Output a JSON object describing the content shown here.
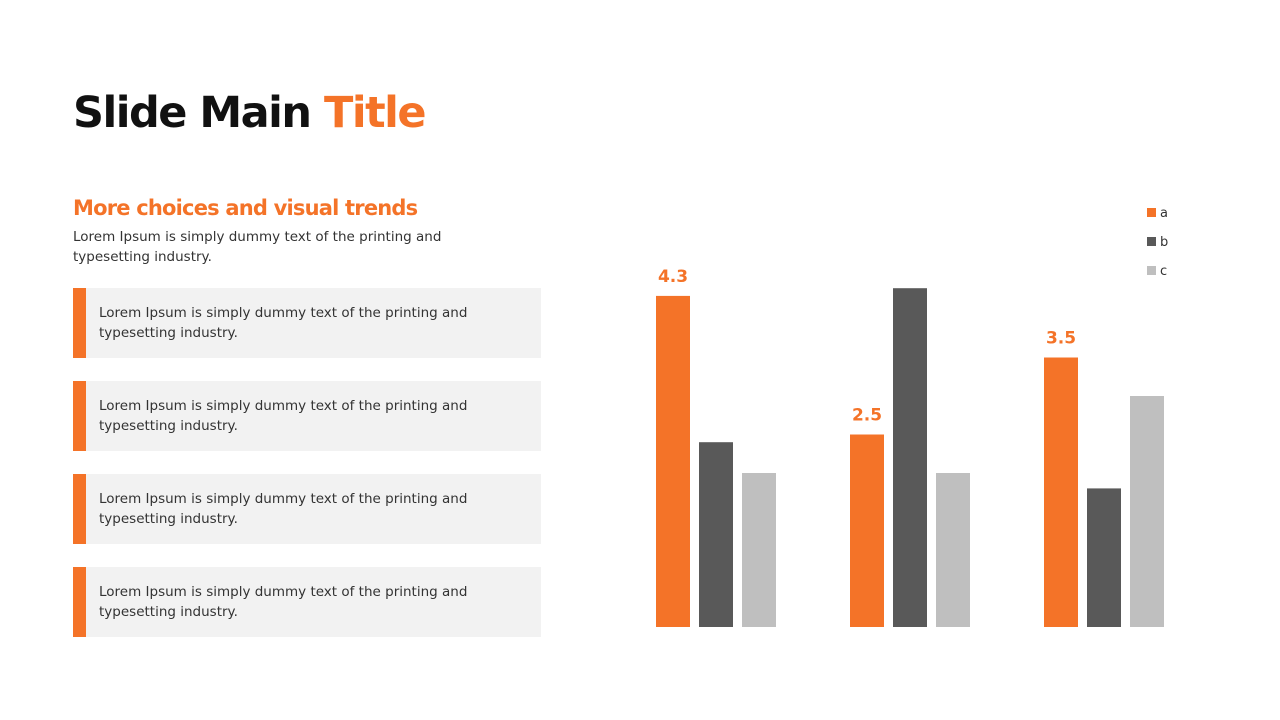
{
  "slide": {
    "title_main": "Slide Main ",
    "title_accent": "Title",
    "subtitle": "More choices and visual trends",
    "intro": "Lorem Ipsum is simply dummy text of the printing and typesetting industry.",
    "cards": [
      "Lorem Ipsum is simply dummy text of the printing and typesetting industry.",
      "Lorem Ipsum is simply dummy text of the printing and typesetting industry.",
      "Lorem Ipsum is simply dummy text of the printing and typesetting industry.",
      "Lorem Ipsum is simply dummy text of the printing and typesetting industry."
    ],
    "colors": {
      "accent": "#f47328",
      "dark_gray": "#595959",
      "light_gray": "#bfbfbf",
      "card_bg": "#f2f2f2"
    }
  },
  "chart_data": {
    "type": "bar",
    "categories": [
      "",
      "",
      ""
    ],
    "series": [
      {
        "name": "a",
        "color": "#f47328",
        "values": [
          4.3,
          2.5,
          3.5
        ]
      },
      {
        "name": "b",
        "color": "#595959",
        "values": [
          2.4,
          4.4,
          1.8
        ]
      },
      {
        "name": "c",
        "color": "#bfbfbf",
        "values": [
          2.0,
          2.0,
          3.0
        ]
      }
    ],
    "data_labels": {
      "series": "a",
      "labels": [
        "4.3",
        "2.5",
        "3.5"
      ]
    },
    "ylim": [
      0,
      5
    ],
    "grid": false,
    "legend": "top-right",
    "title": "",
    "xlabel": "",
    "ylabel": ""
  }
}
